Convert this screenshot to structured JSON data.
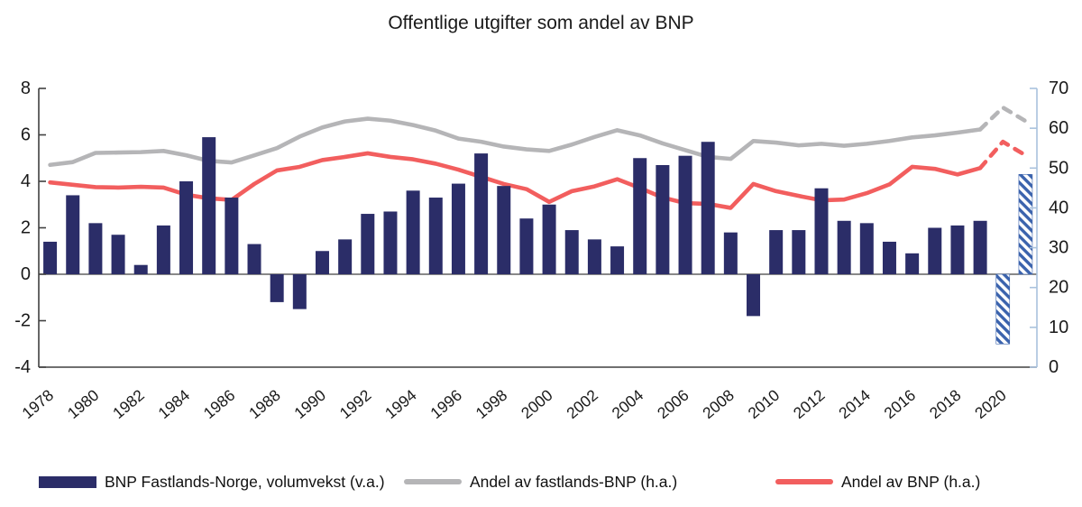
{
  "title": "Offentlige utgifter som andel av BNP",
  "colors": {
    "bar": "#2b2d68",
    "forecast_hatch": "#3b63ad",
    "gray_line": "#b5b5b7",
    "red_line": "#f25e5e",
    "axis_dark": "#404040",
    "axis_right_blue": "#a9c2dd",
    "text": "#1a1a1a"
  },
  "legend": {
    "items": [
      {
        "label": "BNP Fastlands-Norge, volumvekst (v.a.)",
        "type": "bar",
        "color": "#2b2d68"
      },
      {
        "label": "Andel av fastlands-BNP (h.a.)",
        "type": "line",
        "color": "#b5b5b7"
      },
      {
        "label": "Andel av BNP (h.a.)",
        "type": "line",
        "color": "#f25e5e"
      }
    ]
  },
  "chart_data": {
    "type": "bar",
    "subtype": "combo bar + two lines, dual axis",
    "title": "Offentlige utgifter som andel av BNP",
    "x": [
      1978,
      1979,
      1980,
      1981,
      1982,
      1983,
      1984,
      1985,
      1986,
      1987,
      1988,
      1989,
      1990,
      1991,
      1992,
      1993,
      1994,
      1995,
      1996,
      1997,
      1998,
      1999,
      2000,
      2001,
      2002,
      2003,
      2004,
      2005,
      2006,
      2007,
      2008,
      2009,
      2010,
      2011,
      2012,
      2013,
      2014,
      2015,
      2016,
      2017,
      2018,
      2019,
      2020,
      2021
    ],
    "x_tick_labels": [
      "1978",
      "1980",
      "1982",
      "1984",
      "1986",
      "1988",
      "1990",
      "1992",
      "1994",
      "1996",
      "1998",
      "2000",
      "2002",
      "2004",
      "2006",
      "2008",
      "2010",
      "2012",
      "2014",
      "2016",
      "2018",
      "2020"
    ],
    "left_axis": {
      "ticks": [
        8,
        6,
        4,
        2,
        0,
        -2,
        -4
      ],
      "range": [
        -4,
        8
      ]
    },
    "right_axis": {
      "ticks": [
        70,
        60,
        50,
        40,
        30,
        20,
        10,
        0
      ],
      "range": [
        0,
        70
      ]
    },
    "forecast_from_year": 2020,
    "grid": "off",
    "legend_position": "bottom",
    "series": [
      {
        "name": "BNP Fastlands-Norge, volumvekst (v.a.)",
        "type": "bar",
        "axis": "left",
        "color": "#2b2d68",
        "forecast_style": "hatched",
        "values": [
          1.4,
          3.4,
          2.2,
          1.7,
          0.4,
          2.1,
          4.0,
          5.9,
          3.3,
          1.3,
          -1.2,
          -1.5,
          1.0,
          1.5,
          2.6,
          2.7,
          3.6,
          3.3,
          3.9,
          5.2,
          3.8,
          2.4,
          3.0,
          1.9,
          1.5,
          1.2,
          5.0,
          4.7,
          5.1,
          5.7,
          1.8,
          -1.8,
          1.9,
          1.9,
          3.7,
          2.3,
          2.2,
          1.4,
          0.9,
          2.0,
          2.1,
          2.3,
          -3.0,
          4.3
        ]
      },
      {
        "name": "Andel av fastlands-BNP (h.a.)",
        "type": "line",
        "axis": "right",
        "color": "#b5b5b7",
        "forecast_style": "dashed",
        "values": [
          50.8,
          51.5,
          53.8,
          53.9,
          54.0,
          54.3,
          53.2,
          51.8,
          51.4,
          53.2,
          55.0,
          57.9,
          60.2,
          61.7,
          62.4,
          61.9,
          60.8,
          59.4,
          57.4,
          56.6,
          55.4,
          54.7,
          54.3,
          55.9,
          57.8,
          59.5,
          58.2,
          56.2,
          54.5,
          52.8,
          52.3,
          56.8,
          56.4,
          55.7,
          56.1,
          55.6,
          56.1,
          56.8,
          57.7,
          58.2,
          58.9,
          59.7,
          65.2,
          61.8
        ]
      },
      {
        "name": "Andel av BNP (h.a.)",
        "type": "line",
        "axis": "right",
        "color": "#f25e5e",
        "forecast_style": "dashed",
        "values": [
          46.4,
          45.8,
          45.2,
          45.1,
          45.3,
          45.1,
          43.3,
          42.4,
          42.0,
          46.0,
          49.4,
          50.3,
          52.0,
          52.8,
          53.7,
          52.8,
          52.2,
          51.1,
          49.6,
          47.8,
          46.0,
          44.7,
          41.5,
          44.2,
          45.4,
          47.2,
          45.0,
          42.6,
          41.2,
          41.0,
          40.0,
          46.0,
          44.2,
          43.0,
          41.9,
          42.1,
          43.7,
          45.9,
          50.3,
          49.8,
          48.4,
          50.0,
          56.6,
          53.2
        ]
      }
    ]
  }
}
